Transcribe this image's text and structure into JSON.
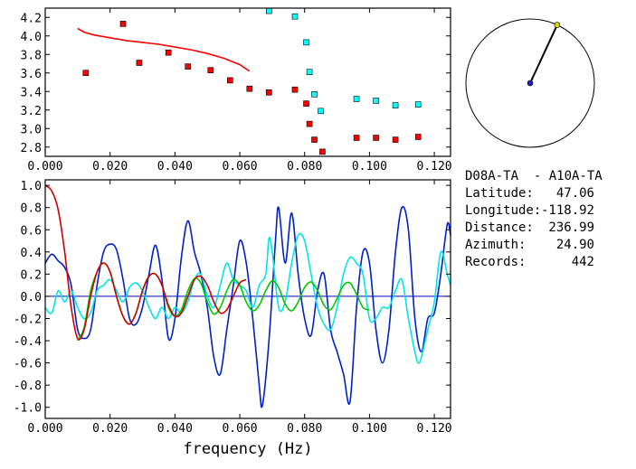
{
  "chart_data": [
    {
      "type": "scatter",
      "xlabel": "",
      "ylabel": "",
      "xlim": [
        0.0,
        0.125
      ],
      "ylim": [
        2.7,
        4.3
      ],
      "xticks": [
        "0.000",
        "0.020",
        "0.040",
        "0.060",
        "0.080",
        "0.100",
        "0.120"
      ],
      "yticks": [
        "2.8",
        "3.0",
        "3.2",
        "3.4",
        "3.6",
        "3.8",
        "4.0",
        "4.2"
      ],
      "series": [
        {
          "color": "#ff0000",
          "marker": "line",
          "points": [
            [
              0.01,
              4.08
            ],
            [
              0.012,
              4.04
            ],
            [
              0.015,
              4.01
            ],
            [
              0.02,
              3.98
            ],
            [
              0.025,
              3.95
            ],
            [
              0.03,
              3.93
            ],
            [
              0.035,
              3.91
            ],
            [
              0.04,
              3.88
            ],
            [
              0.045,
              3.85
            ],
            [
              0.05,
              3.81
            ],
            [
              0.055,
              3.76
            ],
            [
              0.06,
              3.69
            ],
            [
              0.063,
              3.62
            ]
          ]
        },
        {
          "color": "#ff0000",
          "marker": "square",
          "points": [
            [
              0.0125,
              3.6
            ],
            [
              0.024,
              4.13
            ],
            [
              0.029,
              3.71
            ],
            [
              0.038,
              3.82
            ],
            [
              0.044,
              3.67
            ],
            [
              0.051,
              3.63
            ],
            [
              0.057,
              3.52
            ],
            [
              0.063,
              3.43
            ],
            [
              0.069,
              3.39
            ],
            [
              0.077,
              3.42
            ],
            [
              0.0805,
              3.27
            ],
            [
              0.0815,
              3.05
            ],
            [
              0.083,
              2.88
            ],
            [
              0.0855,
              2.75
            ],
            [
              0.096,
              2.9
            ],
            [
              0.102,
              2.9
            ],
            [
              0.108,
              2.88
            ],
            [
              0.115,
              2.91
            ]
          ]
        },
        {
          "color": "#00ffff",
          "marker": "square",
          "points": [
            [
              0.069,
              4.27
            ],
            [
              0.077,
              4.21
            ],
            [
              0.0805,
              3.93
            ],
            [
              0.0815,
              3.61
            ],
            [
              0.083,
              3.37
            ],
            [
              0.085,
              3.19
            ],
            [
              0.096,
              3.32
            ],
            [
              0.102,
              3.3
            ],
            [
              0.108,
              3.25
            ],
            [
              0.115,
              3.26
            ]
          ]
        }
      ]
    },
    {
      "type": "line",
      "xlabel": "frequency (Hz)",
      "ylabel": "",
      "xlim": [
        0.0,
        0.125
      ],
      "ylim": [
        -1.1,
        1.05
      ],
      "xticks": [
        "0.000",
        "0.020",
        "0.040",
        "0.060",
        "0.080",
        "0.100",
        "0.120"
      ],
      "yticks": [
        "1.0",
        "0.8",
        "0.6",
        "0.4",
        "0.2",
        "0.0",
        "-0.2",
        "-0.4",
        "-0.6",
        "-0.8",
        "-1.0"
      ],
      "series": [
        {
          "color": "#0020c8",
          "points": [
            [
              0.0,
              0.3
            ],
            [
              0.002,
              0.38
            ],
            [
              0.004,
              0.32
            ],
            [
              0.006,
              0.26
            ],
            [
              0.008,
              0.1
            ],
            [
              0.01,
              -0.3
            ],
            [
              0.012,
              -0.38
            ],
            [
              0.014,
              -0.3
            ],
            [
              0.016,
              0.1
            ],
            [
              0.018,
              0.4
            ],
            [
              0.02,
              0.47
            ],
            [
              0.022,
              0.42
            ],
            [
              0.024,
              0.15
            ],
            [
              0.026,
              -0.2
            ],
            [
              0.028,
              -0.25
            ],
            [
              0.03,
              -0.1
            ],
            [
              0.032,
              0.2
            ],
            [
              0.034,
              0.46
            ],
            [
              0.036,
              0.15
            ],
            [
              0.038,
              -0.38
            ],
            [
              0.04,
              -0.2
            ],
            [
              0.042,
              0.35
            ],
            [
              0.044,
              0.68
            ],
            [
              0.046,
              0.4
            ],
            [
              0.048,
              0.2
            ],
            [
              0.05,
              -0.1
            ],
            [
              0.052,
              -0.55
            ],
            [
              0.054,
              -0.7
            ],
            [
              0.056,
              -0.3
            ],
            [
              0.058,
              0.1
            ],
            [
              0.06,
              0.5
            ],
            [
              0.062,
              0.3
            ],
            [
              0.064,
              -0.2
            ],
            [
              0.066,
              -0.8
            ],
            [
              0.067,
              -0.98
            ],
            [
              0.069,
              -0.4
            ],
            [
              0.071,
              0.5
            ],
            [
              0.072,
              0.8
            ],
            [
              0.074,
              0.3
            ],
            [
              0.076,
              0.75
            ],
            [
              0.078,
              0.2
            ],
            [
              0.08,
              -0.2
            ],
            [
              0.082,
              -0.35
            ],
            [
              0.084,
              0.05
            ],
            [
              0.086,
              0.2
            ],
            [
              0.088,
              -0.3
            ],
            [
              0.09,
              -0.5
            ],
            [
              0.092,
              -0.7
            ],
            [
              0.094,
              -0.95
            ],
            [
              0.096,
              -0.1
            ],
            [
              0.098,
              0.4
            ],
            [
              0.1,
              0.3
            ],
            [
              0.102,
              -0.3
            ],
            [
              0.104,
              -0.6
            ],
            [
              0.106,
              -0.3
            ],
            [
              0.108,
              0.4
            ],
            [
              0.11,
              0.8
            ],
            [
              0.112,
              0.6
            ],
            [
              0.114,
              -0.2
            ],
            [
              0.116,
              -0.5
            ],
            [
              0.118,
              -0.2
            ],
            [
              0.12,
              -0.15
            ],
            [
              0.122,
              0.2
            ],
            [
              0.124,
              0.65
            ],
            [
              0.125,
              0.55
            ]
          ]
        },
        {
          "color": "#00e6e6",
          "points": [
            [
              0.0,
              -0.1
            ],
            [
              0.002,
              -0.15
            ],
            [
              0.004,
              0.05
            ],
            [
              0.006,
              -0.05
            ],
            [
              0.008,
              0.05
            ],
            [
              0.01,
              -0.1
            ],
            [
              0.012,
              -0.2
            ],
            [
              0.014,
              -0.15
            ],
            [
              0.016,
              0.05
            ],
            [
              0.018,
              0.1
            ],
            [
              0.02,
              0.15
            ],
            [
              0.022,
              0.05
            ],
            [
              0.024,
              -0.05
            ],
            [
              0.026,
              0.08
            ],
            [
              0.028,
              0.12
            ],
            [
              0.03,
              0.05
            ],
            [
              0.032,
              -0.1
            ],
            [
              0.034,
              -0.2
            ],
            [
              0.036,
              -0.1
            ],
            [
              0.038,
              -0.2
            ],
            [
              0.04,
              -0.1
            ],
            [
              0.042,
              -0.15
            ],
            [
              0.044,
              -0.05
            ],
            [
              0.046,
              0.15
            ],
            [
              0.048,
              0.2
            ],
            [
              0.05,
              0.0
            ],
            [
              0.052,
              -0.1
            ],
            [
              0.054,
              0.1
            ],
            [
              0.056,
              0.3
            ],
            [
              0.058,
              0.15
            ],
            [
              0.06,
              0.1
            ],
            [
              0.062,
              0.05
            ],
            [
              0.064,
              -0.1
            ],
            [
              0.066,
              0.1
            ],
            [
              0.068,
              0.2
            ],
            [
              0.069,
              0.52
            ],
            [
              0.07,
              0.4
            ],
            [
              0.072,
              -0.1
            ],
            [
              0.074,
              -0.05
            ],
            [
              0.076,
              0.3
            ],
            [
              0.078,
              0.55
            ],
            [
              0.08,
              0.5
            ],
            [
              0.082,
              0.2
            ],
            [
              0.084,
              -0.1
            ],
            [
              0.086,
              -0.25
            ],
            [
              0.088,
              -0.3
            ],
            [
              0.09,
              -0.1
            ],
            [
              0.092,
              0.2
            ],
            [
              0.094,
              0.35
            ],
            [
              0.096,
              0.3
            ],
            [
              0.098,
              0.2
            ],
            [
              0.1,
              -0.2
            ],
            [
              0.102,
              -0.2
            ],
            [
              0.104,
              -0.1
            ],
            [
              0.106,
              -0.1
            ],
            [
              0.108,
              0.05
            ],
            [
              0.11,
              0.15
            ],
            [
              0.112,
              -0.2
            ],
            [
              0.114,
              -0.5
            ],
            [
              0.115,
              -0.6
            ],
            [
              0.116,
              -0.55
            ],
            [
              0.118,
              -0.3
            ],
            [
              0.12,
              -0.05
            ],
            [
              0.122,
              0.4
            ],
            [
              0.124,
              0.2
            ],
            [
              0.125,
              0.1
            ]
          ]
        },
        {
          "color": "#00c800",
          "points": [
            [
              0.01,
              -0.4
            ],
            [
              0.012,
              -0.28
            ],
            [
              0.014,
              0.05
            ],
            [
              0.016,
              0.22
            ],
            [
              0.018,
              0.3
            ],
            [
              0.02,
              0.22
            ],
            [
              0.022,
              0.0
            ],
            [
              0.024,
              -0.18
            ],
            [
              0.026,
              -0.25
            ],
            [
              0.028,
              -0.15
            ],
            [
              0.03,
              0.05
            ],
            [
              0.032,
              0.18
            ],
            [
              0.034,
              0.2
            ],
            [
              0.036,
              0.1
            ],
            [
              0.038,
              -0.1
            ],
            [
              0.04,
              -0.18
            ],
            [
              0.042,
              -0.12
            ],
            [
              0.044,
              0.05
            ],
            [
              0.046,
              0.16
            ],
            [
              0.048,
              0.12
            ],
            [
              0.05,
              -0.05
            ],
            [
              0.052,
              -0.16
            ],
            [
              0.054,
              -0.1
            ],
            [
              0.056,
              0.05
            ],
            [
              0.058,
              0.15
            ],
            [
              0.06,
              0.1
            ],
            [
              0.062,
              -0.05
            ],
            [
              0.064,
              -0.13
            ],
            [
              0.066,
              -0.08
            ],
            [
              0.068,
              0.05
            ],
            [
              0.07,
              0.14
            ],
            [
              0.072,
              0.08
            ],
            [
              0.074,
              -0.07
            ],
            [
              0.076,
              -0.13
            ],
            [
              0.078,
              -0.05
            ],
            [
              0.08,
              0.08
            ],
            [
              0.082,
              0.13
            ],
            [
              0.084,
              0.05
            ],
            [
              0.086,
              -0.08
            ],
            [
              0.088,
              -0.12
            ],
            [
              0.09,
              -0.02
            ],
            [
              0.092,
              0.1
            ],
            [
              0.094,
              0.12
            ],
            [
              0.096,
              0.02
            ],
            [
              0.098,
              -0.1
            ],
            [
              0.1,
              -0.12
            ]
          ]
        },
        {
          "color": "#d20000",
          "points": [
            [
              0.0,
              1.0
            ],
            [
              0.002,
              0.95
            ],
            [
              0.004,
              0.78
            ],
            [
              0.006,
              0.4
            ],
            [
              0.008,
              -0.1
            ],
            [
              0.01,
              -0.38
            ],
            [
              0.012,
              -0.3
            ],
            [
              0.014,
              0.0
            ],
            [
              0.016,
              0.22
            ],
            [
              0.018,
              0.3
            ],
            [
              0.02,
              0.22
            ],
            [
              0.022,
              0.0
            ],
            [
              0.024,
              -0.18
            ],
            [
              0.026,
              -0.25
            ],
            [
              0.028,
              -0.15
            ],
            [
              0.03,
              0.05
            ],
            [
              0.032,
              0.18
            ],
            [
              0.034,
              0.2
            ],
            [
              0.036,
              0.1
            ],
            [
              0.038,
              -0.08
            ],
            [
              0.04,
              -0.18
            ],
            [
              0.042,
              -0.15
            ],
            [
              0.044,
              0.0
            ],
            [
              0.046,
              0.15
            ],
            [
              0.048,
              0.18
            ],
            [
              0.05,
              0.1
            ],
            [
              0.052,
              -0.05
            ],
            [
              0.054,
              -0.15
            ],
            [
              0.056,
              -0.12
            ],
            [
              0.058,
              0.0
            ],
            [
              0.06,
              0.12
            ],
            [
              0.062,
              0.15
            ]
          ]
        }
      ]
    }
  ],
  "info": {
    "title": "D08A-TA  - A10A-TA",
    "rows": [
      {
        "label": "Latitude:",
        "value": "47.06"
      },
      {
        "label": "Longitude:",
        "value": "-118.92"
      },
      {
        "label": "Distance:",
        "value": "236.99"
      },
      {
        "label": "Azimuth:",
        "value": "24.90"
      },
      {
        "label": "Records:",
        "value": "442"
      }
    ]
  },
  "compass": {
    "azimuth_deg": 24.9
  }
}
